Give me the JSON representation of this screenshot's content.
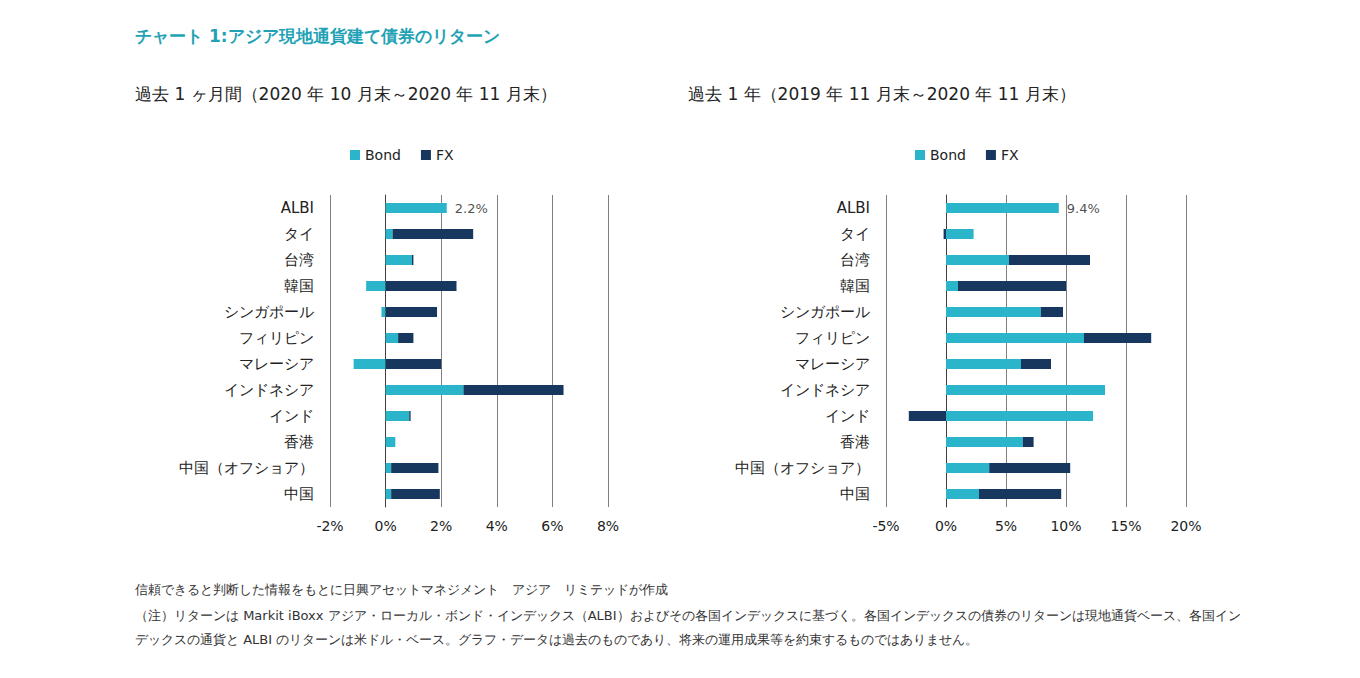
{
  "title": "チャート 1:アジア現地通貨建て債券のリターン",
  "notes": [
    "信頼できると判断した情報をもとに日興アセットマネジメント　アジア　リミテッドが作成",
    "（注）リターンは Markit iBoxx アジア・ローカル・ボンド・インデックス（ALBI）およびその各国インデックスに基づく。各国インデックスの債券のリターンは現地通貨ベース、各国インデックスの通貨と ALBI のリターンは米ドル・ベース。グラフ・データは過去のものであり、将来の運用成果等を約束するものではありません。"
  ],
  "chart_data": [
    {
      "type": "bar",
      "orientation": "horizontal",
      "stacked": true,
      "grid": true,
      "legend": "top",
      "subtitle": "過去 1 ヶ月間（2020 年 10 月末～2020 年 11 月末）",
      "categories": [
        "ALBI",
        "タイ",
        "台湾",
        "韓国",
        "シンガポール",
        "フィリピン",
        "マレーシア",
        "インドネシア",
        "インド",
        "香港",
        "中国（オフショア）",
        "中国"
      ],
      "series": [
        {
          "name": "Bond",
          "color": "#2bb5ca",
          "values": [
            2.2,
            0.25,
            0.95,
            -0.7,
            -0.15,
            0.45,
            -1.15,
            2.8,
            0.85,
            0.35,
            0.2,
            0.2
          ]
        },
        {
          "name": "FX",
          "color": "#17375e",
          "values": [
            0,
            2.9,
            0.05,
            2.55,
            1.85,
            0.55,
            2.0,
            3.6,
            0.05,
            0,
            1.7,
            1.75
          ]
        }
      ],
      "xlim": [
        -2,
        8
      ],
      "xticks": [
        {
          "value": -2,
          "label": "-2%"
        },
        {
          "value": 0,
          "label": "0%"
        },
        {
          "value": 2,
          "label": "2%"
        },
        {
          "value": 4,
          "label": "4%"
        },
        {
          "value": 6,
          "label": "6%"
        },
        {
          "value": 8,
          "label": "8%"
        }
      ],
      "annotations": [
        {
          "category": "ALBI",
          "value": 2.2,
          "text": "2.2%"
        }
      ]
    },
    {
      "type": "bar",
      "orientation": "horizontal",
      "stacked": true,
      "grid": true,
      "legend": "top",
      "subtitle": "過去 1 年（2019 年 11 月末～2020 年 11 月末）",
      "categories": [
        "ALBI",
        "タイ",
        "台湾",
        "韓国",
        "シンガポール",
        "フィリピン",
        "マレーシア",
        "インドネシア",
        "インド",
        "香港",
        "中国（オフショア）",
        "中国"
      ],
      "series": [
        {
          "name": "Bond",
          "color": "#2bb5ca",
          "values": [
            9.4,
            2.3,
            5.25,
            1.0,
            7.9,
            11.5,
            6.25,
            13.25,
            12.25,
            6.4,
            3.6,
            2.75
          ]
        },
        {
          "name": "FX",
          "color": "#17375e",
          "values": [
            0,
            -0.2,
            6.75,
            9.0,
            1.85,
            5.6,
            2.5,
            0,
            -3.1,
            0.9,
            6.75,
            6.85
          ]
        }
      ],
      "xlim": [
        -5,
        20
      ],
      "xticks": [
        {
          "value": -5,
          "label": "-5%"
        },
        {
          "value": 0,
          "label": "0%"
        },
        {
          "value": 5,
          "label": "5%"
        },
        {
          "value": 10,
          "label": "10%"
        },
        {
          "value": 15,
          "label": "15%"
        },
        {
          "value": 20,
          "label": "20%"
        }
      ],
      "annotations": [
        {
          "category": "ALBI",
          "value": 9.4,
          "text": "9.4%"
        }
      ]
    }
  ]
}
